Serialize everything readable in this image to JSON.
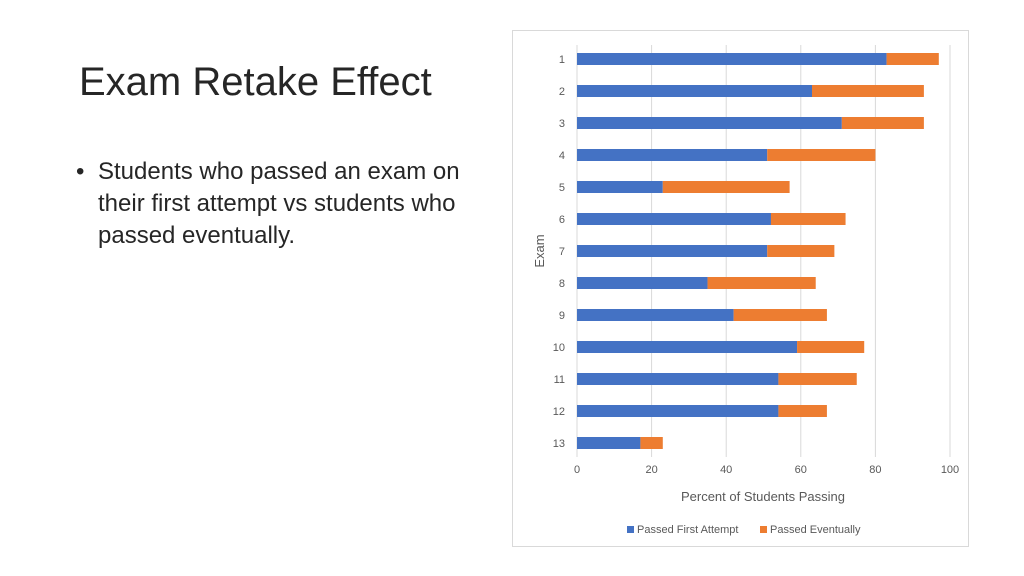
{
  "slide": {
    "title": "Exam Retake Effect",
    "bullets": [
      "Students who passed an exam on their first attempt vs students who passed eventually."
    ]
  },
  "chart_data": {
    "type": "bar",
    "orientation": "horizontal",
    "stacked": true,
    "categories": [
      "1",
      "2",
      "3",
      "4",
      "5",
      "6",
      "7",
      "8",
      "9",
      "10",
      "11",
      "12",
      "13"
    ],
    "series": [
      {
        "name": "Passed First Attempt",
        "color": "#4472C4",
        "values": [
          83,
          63,
          71,
          51,
          23,
          52,
          51,
          35,
          42,
          59,
          54,
          54,
          17
        ]
      },
      {
        "name": "Passed Eventually",
        "color": "#ED7D31",
        "values": [
          14,
          30,
          22,
          29,
          34,
          20,
          18,
          29,
          25,
          18,
          21,
          13,
          6
        ]
      }
    ],
    "xlabel": "Percent of Students Passing",
    "ylabel": "Exam",
    "xlim": [
      0,
      100
    ],
    "xticks": [
      0,
      20,
      40,
      60,
      80,
      100
    ],
    "grid": true,
    "legend": "bottom"
  }
}
